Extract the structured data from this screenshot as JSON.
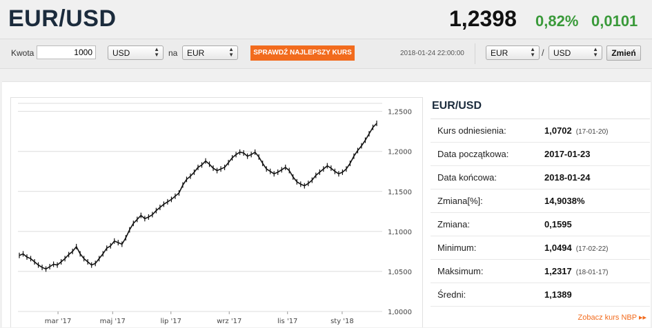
{
  "header": {
    "pair": "EUR/USD",
    "price": "1,2398",
    "change_pct": "0,82%",
    "change_abs": "0,0101",
    "up_color": "#3a9a3a"
  },
  "converter": {
    "amount_label": "Kwota",
    "amount_value": "1000",
    "from_currency": "USD",
    "to_label": "na",
    "to_currency": "EUR",
    "best_rate_button": "SPRAWDŹ NAJLEPSZY KURS",
    "accent_color": "#f26b1d"
  },
  "pair_selector": {
    "timestamp": "2018-01-24 22:00:00",
    "base": "EUR",
    "slash": "/",
    "quote": "USD",
    "change_button": "Zmień"
  },
  "info_panel": {
    "title": "EUR/USD",
    "rows": [
      {
        "label": "Kurs odniesienia:",
        "value": "1,0702",
        "date": "(17-01-20)"
      },
      {
        "label": "Data początkowa:",
        "value": "2017-01-23",
        "date": ""
      },
      {
        "label": "Data końcowa:",
        "value": "2018-01-24",
        "date": ""
      },
      {
        "label": "Zmiana[%]:",
        "value": "14,9038%",
        "date": ""
      },
      {
        "label": "Zmiana:",
        "value": "0,1595",
        "date": ""
      },
      {
        "label": "Minimum:",
        "value": "1,0494",
        "date": "(17-02-22)"
      },
      {
        "label": "Maksimum:",
        "value": "1,2317",
        "date": "(18-01-17)"
      },
      {
        "label": "Średni:",
        "value": "1,1389",
        "date": ""
      }
    ],
    "nbp_link": "Zobacz kurs NBP ▸▸"
  },
  "chart_data": {
    "type": "line",
    "title": "",
    "xlabel": "",
    "ylabel": "",
    "ylim": [
      1.0,
      1.26
    ],
    "yticks": [
      "1,0000",
      "1,0500",
      "1,1000",
      "1,1500",
      "1,2000",
      "1,2500"
    ],
    "ytick_values": [
      1.0,
      1.05,
      1.1,
      1.15,
      1.2,
      1.25
    ],
    "xticks": [
      "mar '17",
      "maj '17",
      "lip '17",
      "wrz '17",
      "lis '17",
      "sty '18"
    ],
    "xtick_positions": [
      0.11,
      0.26,
      0.42,
      0.58,
      0.74,
      0.89
    ],
    "x_range": [
      "2017-01-23",
      "2018-01-24"
    ],
    "grid": true,
    "series": [
      {
        "values": [
          1.07,
          1.072,
          1.068,
          1.066,
          1.062,
          1.058,
          1.055,
          1.053,
          1.056,
          1.059,
          1.058,
          1.062,
          1.066,
          1.071,
          1.075,
          1.081,
          1.072,
          1.066,
          1.062,
          1.058,
          1.06,
          1.066,
          1.072,
          1.079,
          1.082,
          1.088,
          1.086,
          1.084,
          1.092,
          1.102,
          1.11,
          1.115,
          1.12,
          1.116,
          1.118,
          1.121,
          1.126,
          1.13,
          1.134,
          1.137,
          1.14,
          1.144,
          1.148,
          1.158,
          1.165,
          1.169,
          1.174,
          1.18,
          1.183,
          1.188,
          1.184,
          1.179,
          1.176,
          1.178,
          1.18,
          1.186,
          1.192,
          1.196,
          1.199,
          1.198,
          1.194,
          1.196,
          1.199,
          1.193,
          1.185,
          1.178,
          1.175,
          1.172,
          1.174,
          1.177,
          1.18,
          1.176,
          1.168,
          1.162,
          1.159,
          1.157,
          1.16,
          1.164,
          1.17,
          1.174,
          1.178,
          1.182,
          1.179,
          1.175,
          1.172,
          1.174,
          1.178,
          1.185,
          1.194,
          1.201,
          1.207,
          1.214,
          1.222,
          1.23,
          1.235
        ]
      }
    ]
  }
}
